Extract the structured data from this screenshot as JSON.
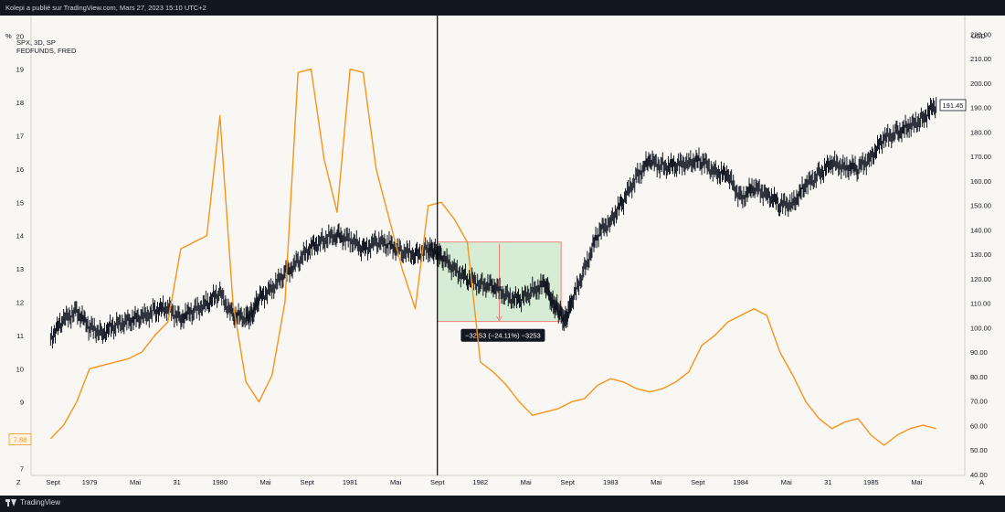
{
  "header": {
    "published": "Kolepi a publié sur TradingView.com, Mars 27, 2023 15:10 UTC+2"
  },
  "footer": {
    "brand": "TradingView"
  },
  "legend": {
    "line1": "SPX, 3D, SP",
    "line2": "FEDFUNDS, FRED"
  },
  "axis_units": {
    "left": "%",
    "right": "USD"
  },
  "corner_labels": {
    "left": "Z",
    "right": "A"
  },
  "measure_label": "−32.53 (−24.11%) −3253",
  "price_badge": "191.45",
  "rate_badge": "7.88",
  "colors": {
    "spx": "#131722",
    "fedfunds": "#f7931a",
    "measure_fill": "#d6ecd4",
    "measure_line": "#ef5350",
    "background": "#f8f7f3"
  },
  "chart_data": {
    "type": "line",
    "x_ticks": [
      "Sept",
      "1979",
      "Mai",
      "31",
      "1980",
      "Mai",
      "Sept",
      "1981",
      "Mai",
      "Sept",
      "1982",
      "Mai",
      "Sept",
      "1983",
      "Mai",
      "Sept",
      "1984",
      "Mai",
      "31",
      "1985",
      "Mai"
    ],
    "left_axis": {
      "label": "%",
      "ticks": [
        "20",
        "19",
        "18",
        "17",
        "16",
        "15",
        "14",
        "13",
        "12",
        "11",
        "10",
        "9",
        "8",
        "7"
      ],
      "range": [
        6.6,
        20.2
      ]
    },
    "right_axis": {
      "label": "USD",
      "ticks": [
        "220.00",
        "210.00",
        "200.00",
        "190.00",
        "180.00",
        "170.00",
        "160.00",
        "150.00",
        "140.00",
        "130.00",
        "120.00",
        "110.00",
        "100.00",
        "90.00",
        "80.00",
        "70.00",
        "60.00",
        "50.00",
        "40.00"
      ],
      "range": [
        37,
        222
      ]
    },
    "series": [
      {
        "name": "SPX, 3D, SP",
        "x": [
          1978.7,
          1978.8,
          1978.9,
          1979.0,
          1979.1,
          1979.2,
          1979.3,
          1979.4,
          1979.5,
          1979.6,
          1979.7,
          1979.8,
          1979.9,
          1980.0,
          1980.1,
          1980.2,
          1980.25,
          1980.3,
          1980.4,
          1980.5,
          1980.6,
          1980.7,
          1980.8,
          1980.9,
          1981.0,
          1981.1,
          1981.2,
          1981.3,
          1981.4,
          1981.5,
          1981.6,
          1981.65,
          1981.7,
          1981.8,
          1981.9,
          1982.0,
          1982.1,
          1982.2,
          1982.3,
          1982.4,
          1982.5,
          1982.55,
          1982.6,
          1982.65,
          1982.7,
          1982.8,
          1982.9,
          1983.0,
          1983.1,
          1983.2,
          1983.3,
          1983.4,
          1983.5,
          1983.6,
          1983.7,
          1983.8,
          1983.9,
          1984.0,
          1984.1,
          1984.2,
          1984.3,
          1984.4,
          1984.5,
          1984.6,
          1984.7,
          1984.8,
          1984.9,
          1985.0,
          1985.1,
          1985.2,
          1985.3,
          1985.4,
          1985.5
        ],
        "values": [
          96,
          103,
          107,
          100,
          98,
          101,
          103,
          104,
          107,
          108,
          104,
          107,
          110,
          114,
          105,
          104,
          106,
          112,
          116,
          122,
          127,
          133,
          136,
          138,
          136,
          132,
          135,
          134,
          131,
          130,
          132,
          131,
          129,
          124,
          120,
          118,
          117,
          113,
          111,
          115,
          118,
          111,
          107,
          103,
          110,
          124,
          138,
          144,
          152,
          162,
          168,
          166,
          166,
          168,
          168,
          164,
          162,
          153,
          157,
          155,
          150,
          151,
          158,
          163,
          167,
          166,
          165,
          170,
          177,
          180,
          182,
          186,
          191
        ]
      },
      {
        "name": "FEDFUNDS, FRED",
        "x": [
          1978.7,
          1978.8,
          1978.9,
          1979.0,
          1979.1,
          1979.2,
          1979.3,
          1979.4,
          1979.5,
          1979.6,
          1979.7,
          1979.8,
          1979.9,
          1980.0,
          1980.1,
          1980.2,
          1980.3,
          1980.4,
          1980.5,
          1980.6,
          1980.7,
          1980.8,
          1980.9,
          1981.0,
          1981.1,
          1981.2,
          1981.3,
          1981.4,
          1981.5,
          1981.6,
          1981.7,
          1981.8,
          1981.9,
          1982.0,
          1982.1,
          1982.2,
          1982.3,
          1982.4,
          1982.5,
          1982.6,
          1982.7,
          1982.8,
          1982.9,
          1983.0,
          1983.1,
          1983.2,
          1983.3,
          1983.4,
          1983.5,
          1983.6,
          1983.7,
          1983.8,
          1983.9,
          1984.0,
          1984.1,
          1984.2,
          1984.3,
          1984.4,
          1984.5,
          1984.6,
          1984.7,
          1984.8,
          1984.9,
          1985.0,
          1985.1,
          1985.2,
          1985.3,
          1985.4,
          1985.5
        ],
        "values": [
          7.9,
          8.3,
          9.0,
          10.0,
          10.1,
          10.2,
          10.3,
          10.5,
          11.0,
          11.4,
          13.6,
          13.8,
          14.0,
          17.6,
          12.0,
          9.6,
          9.0,
          9.8,
          12.0,
          18.9,
          19.0,
          16.3,
          14.7,
          19.0,
          18.9,
          16.0,
          14.5,
          13.0,
          11.8,
          14.9,
          15.0,
          14.5,
          13.8,
          10.2,
          9.9,
          9.5,
          9.0,
          8.6,
          8.7,
          8.8,
          9.0,
          9.1,
          9.5,
          9.7,
          9.6,
          9.4,
          9.3,
          9.4,
          9.6,
          9.9,
          10.7,
          11.0,
          11.4,
          11.6,
          11.8,
          11.6,
          10.5,
          9.8,
          9.0,
          8.5,
          8.2,
          8.4,
          8.5,
          8.0,
          7.7,
          8.0,
          8.2,
          8.3,
          8.2
        ]
      }
    ],
    "measure": {
      "x_start": 1981.67,
      "x_end": 1982.62,
      "y_top": 135.0,
      "y_bottom": 102.5
    },
    "crosshair_x": 1981.67,
    "grid": false,
    "legend_position": "top-left"
  }
}
